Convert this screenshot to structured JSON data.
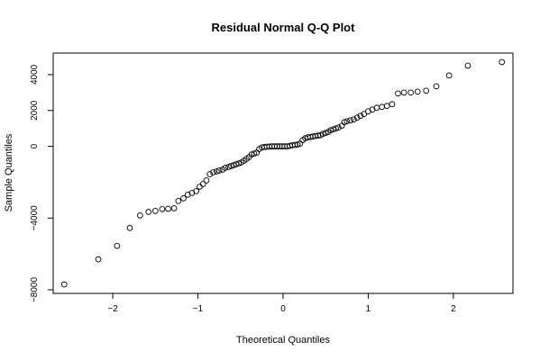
{
  "chart_data": {
    "type": "scatter",
    "title": "Residual Normal Q-Q Plot",
    "xlabel": "Theoretical Quantiles",
    "ylabel": "Sample Quantiles",
    "xlim": [
      -2.7,
      2.7
    ],
    "ylim": [
      -8200,
      5200
    ],
    "x_ticks": [
      -2,
      -1,
      0,
      1,
      2
    ],
    "x_tick_labels": [
      "−2",
      "−1",
      "0",
      "1",
      "2"
    ],
    "y_ticks": [
      -8000,
      -4000,
      0,
      2000,
      4000
    ],
    "y_tick_labels": [
      "−8000",
      "−4000",
      "0",
      "2000",
      "4000"
    ],
    "grid": false,
    "legend": "none",
    "series": [
      {
        "points": [
          [
            -2.57,
            -7700
          ],
          [
            -2.17,
            -6300
          ],
          [
            -1.95,
            -5550
          ],
          [
            -1.8,
            -4550
          ],
          [
            -1.68,
            -3850
          ],
          [
            -1.58,
            -3650
          ],
          [
            -1.5,
            -3600
          ],
          [
            -1.42,
            -3500
          ],
          [
            -1.35,
            -3480
          ],
          [
            -1.28,
            -3450
          ],
          [
            -1.23,
            -3050
          ],
          [
            -1.17,
            -2900
          ],
          [
            -1.12,
            -2700
          ],
          [
            -1.07,
            -2600
          ],
          [
            -1.02,
            -2500
          ],
          [
            -0.98,
            -2250
          ],
          [
            -0.94,
            -2100
          ],
          [
            -0.9,
            -1900
          ],
          [
            -0.86,
            -1550
          ],
          [
            -0.82,
            -1450
          ],
          [
            -0.78,
            -1400
          ],
          [
            -0.75,
            -1350
          ],
          [
            -0.71,
            -1300
          ],
          [
            -0.68,
            -1200
          ],
          [
            -0.64,
            -1150
          ],
          [
            -0.61,
            -1100
          ],
          [
            -0.58,
            -1050
          ],
          [
            -0.55,
            -1000
          ],
          [
            -0.52,
            -950
          ],
          [
            -0.49,
            -900
          ],
          [
            -0.46,
            -800
          ],
          [
            -0.43,
            -700
          ],
          [
            -0.4,
            -600
          ],
          [
            -0.37,
            -450
          ],
          [
            -0.34,
            -400
          ],
          [
            -0.31,
            -350
          ],
          [
            -0.28,
            -150
          ],
          [
            -0.25,
            -60
          ],
          [
            -0.22,
            -40
          ],
          [
            -0.19,
            -20
          ],
          [
            -0.16,
            -10
          ],
          [
            -0.13,
            0
          ],
          [
            -0.1,
            0
          ],
          [
            -0.07,
            0
          ],
          [
            -0.04,
            0
          ],
          [
            -0.01,
            0
          ],
          [
            0.02,
            0
          ],
          [
            0.05,
            0
          ],
          [
            0.08,
            30
          ],
          [
            0.11,
            60
          ],
          [
            0.14,
            80
          ],
          [
            0.17,
            100
          ],
          [
            0.2,
            150
          ],
          [
            0.23,
            350
          ],
          [
            0.26,
            450
          ],
          [
            0.29,
            500
          ],
          [
            0.32,
            520
          ],
          [
            0.35,
            550
          ],
          [
            0.38,
            580
          ],
          [
            0.41,
            600
          ],
          [
            0.44,
            620
          ],
          [
            0.47,
            700
          ],
          [
            0.5,
            750
          ],
          [
            0.53,
            800
          ],
          [
            0.56,
            900
          ],
          [
            0.59,
            950
          ],
          [
            0.62,
            1000
          ],
          [
            0.65,
            1050
          ],
          [
            0.69,
            1150
          ],
          [
            0.72,
            1350
          ],
          [
            0.75,
            1400
          ],
          [
            0.79,
            1450
          ],
          [
            0.83,
            1500
          ],
          [
            0.87,
            1600
          ],
          [
            0.91,
            1700
          ],
          [
            0.95,
            1800
          ],
          [
            1.0,
            1950
          ],
          [
            1.05,
            2050
          ],
          [
            1.1,
            2150
          ],
          [
            1.16,
            2200
          ],
          [
            1.22,
            2250
          ],
          [
            1.28,
            2350
          ],
          [
            1.35,
            2950
          ],
          [
            1.42,
            3000
          ],
          [
            1.5,
            3000
          ],
          [
            1.58,
            3050
          ],
          [
            1.68,
            3100
          ],
          [
            1.8,
            3350
          ],
          [
            1.95,
            3950
          ],
          [
            2.17,
            4500
          ],
          [
            2.57,
            4700
          ]
        ]
      }
    ]
  }
}
